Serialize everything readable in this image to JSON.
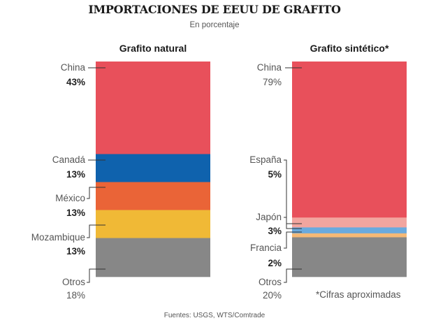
{
  "chart_data": [
    {
      "type": "bar",
      "stacked": true,
      "title": "Grafito natural",
      "unit": "%",
      "segments": [
        {
          "name": "China",
          "value": 43,
          "color": "#e8505b",
          "label_bold": true
        },
        {
          "name": "Canadá",
          "value": 13,
          "color": "#0f62ad",
          "label_bold": true
        },
        {
          "name": "México",
          "value": 13,
          "color": "#ea6437",
          "label_bold": true
        },
        {
          "name": "Mozambique",
          "value": 13,
          "color": "#f0b936",
          "label_bold": true
        },
        {
          "name": "Otros",
          "value": 18,
          "color": "#878787",
          "label_bold": false
        }
      ]
    },
    {
      "type": "bar",
      "stacked": true,
      "title": "Grafito sintético*",
      "unit": "%",
      "segments": [
        {
          "name": "China",
          "value": 79,
          "color": "#e8505b",
          "label_bold": false
        },
        {
          "name": "España",
          "value": 5,
          "color": "#f2a59f",
          "label_bold": true
        },
        {
          "name": "Japón",
          "value": 3,
          "color": "#6aaade",
          "label_bold": true
        },
        {
          "name": "Francia",
          "value": 2,
          "color": "#f5b976",
          "label_bold": true
        },
        {
          "name": "Otros",
          "value": 20,
          "color": "#878787",
          "label_bold": false
        }
      ]
    }
  ],
  "header": {
    "title": "IMPORTACIONES DE EEUU DE GRAFITO",
    "subtitle": "En porcentaje"
  },
  "footnote": "*Cifras aproximadas",
  "source": "Fuentes: USGS, WTS/Comtrade"
}
